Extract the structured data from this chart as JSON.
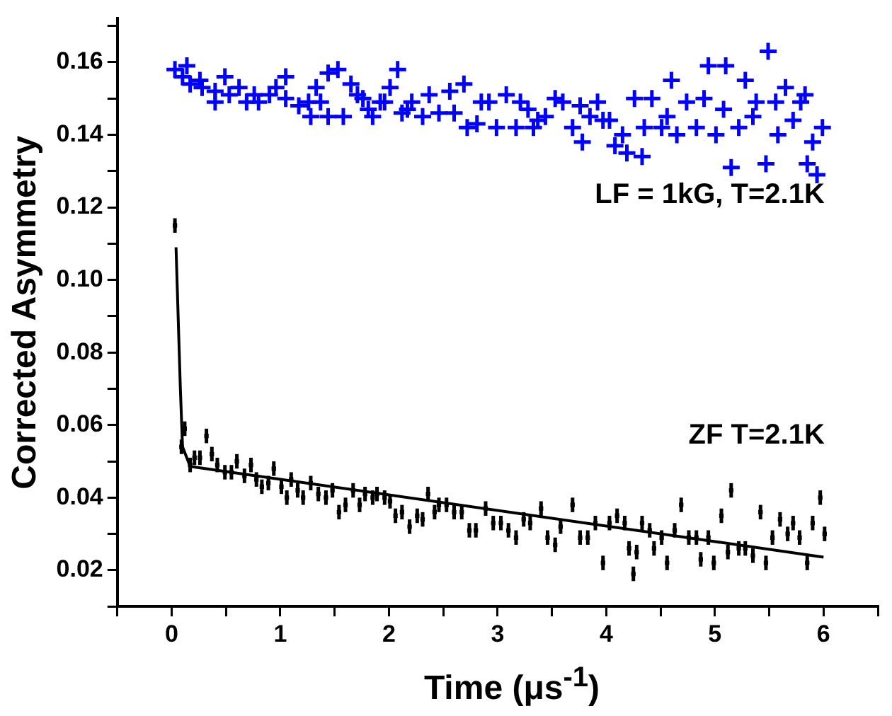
{
  "chart_data": {
    "type": "scatter",
    "xlabel": "Time (μs$^{-1}$)",
    "ylabel": "Corrected Asymmetry",
    "xlim": [
      -0.5,
      6.5
    ],
    "ylim": [
      0.01,
      0.172
    ],
    "xticks": [
      {
        "value": -0.5,
        "label": null
      },
      0,
      {
        "value": 0.5,
        "label": null
      },
      1,
      {
        "value": 1.5,
        "label": null
      },
      2,
      {
        "value": 2.5,
        "label": null
      },
      3,
      {
        "value": 3.5,
        "label": null
      },
      4,
      {
        "value": 4.5,
        "label": null
      },
      5,
      {
        "value": 5.5,
        "label": null
      },
      6,
      {
        "value": 6.5,
        "label": null
      }
    ],
    "yticks": [
      {
        "value": 0.01,
        "label": null
      },
      0.02,
      {
        "value": 0.03,
        "label": null
      },
      0.04,
      {
        "value": 0.05,
        "label": null
      },
      0.06,
      {
        "value": 0.07,
        "label": null
      },
      0.08,
      {
        "value": 0.09,
        "label": null
      },
      {
        "value": 0.1,
        "label": "0.10"
      },
      {
        "value": 0.11,
        "label": null
      },
      0.12,
      {
        "value": 0.13,
        "label": null
      },
      0.14,
      {
        "value": 0.15,
        "label": null
      },
      0.16,
      {
        "value": 0.17,
        "label": null
      }
    ],
    "grid": false,
    "legend": false,
    "annotations": [
      "LF = 1kG, T=2.1K",
      "ZF T=2.1K"
    ],
    "series": [
      {
        "color": "#0000ff",
        "marker": "cross",
        "x": [
          0.03,
          0.14,
          0.1,
          0.17,
          0.26,
          0.28,
          0.4,
          0.4,
          0.49,
          0.53,
          0.62,
          0.69,
          0.76,
          0.8,
          0.9,
          0.96,
          1.05,
          1.05,
          1.17,
          1.26,
          1.28,
          1.33,
          1.37,
          1.44,
          1.44,
          1.53,
          1.58,
          1.65,
          1.71,
          1.76,
          1.81,
          1.85,
          1.92,
          1.96,
          2.01,
          2.08,
          2.12,
          2.17,
          2.21,
          2.31,
          2.37,
          2.46,
          2.56,
          2.6,
          2.69,
          2.72,
          2.81,
          2.85,
          2.92,
          2.99,
          3.08,
          3.17,
          3.21,
          3.28,
          3.33,
          3.37,
          3.44,
          3.53,
          3.6,
          3.69,
          3.76,
          3.78,
          3.85,
          3.92,
          3.97,
          4.03,
          4.08,
          4.15,
          4.19,
          4.26,
          4.33,
          4.35,
          4.42,
          4.51,
          4.56,
          4.6,
          4.65,
          4.74,
          4.83,
          4.9,
          4.94,
          5.01,
          5.08,
          5.1,
          5.15,
          5.22,
          5.28,
          5.35,
          5.38,
          5.47,
          5.49,
          5.56,
          5.58,
          5.65,
          5.72,
          5.79,
          5.83,
          5.85,
          5.9,
          5.94,
          5.99
        ],
        "values": [
          0.158,
          0.159,
          0.156,
          0.154,
          0.155,
          0.153,
          0.152,
          0.149,
          0.156,
          0.151,
          0.153,
          0.149,
          0.151,
          0.149,
          0.151,
          0.153,
          0.156,
          0.15,
          0.148,
          0.149,
          0.145,
          0.153,
          0.149,
          0.157,
          0.145,
          0.158,
          0.145,
          0.154,
          0.151,
          0.15,
          0.147,
          0.145,
          0.149,
          0.149,
          0.153,
          0.158,
          0.146,
          0.147,
          0.149,
          0.145,
          0.151,
          0.146,
          0.152,
          0.146,
          0.154,
          0.142,
          0.143,
          0.149,
          0.149,
          0.142,
          0.151,
          0.142,
          0.149,
          0.147,
          0.142,
          0.144,
          0.145,
          0.15,
          0.149,
          0.142,
          0.148,
          0.138,
          0.145,
          0.149,
          0.144,
          0.144,
          0.137,
          0.14,
          0.135,
          0.15,
          0.134,
          0.142,
          0.15,
          0.142,
          0.145,
          0.155,
          0.14,
          0.149,
          0.142,
          0.15,
          0.159,
          0.14,
          0.147,
          0.159,
          0.131,
          0.142,
          0.155,
          0.145,
          0.149,
          0.132,
          0.163,
          0.149,
          0.14,
          0.153,
          0.144,
          0.149,
          0.151,
          0.132,
          0.138,
          0.129,
          0.142
        ]
      },
      {
        "color": "#000000",
        "marker": "square",
        "x": [
          0.03,
          0.09,
          0.12,
          0.17,
          0.21,
          0.26,
          0.32,
          0.37,
          0.42,
          0.49,
          0.55,
          0.6,
          0.67,
          0.73,
          0.78,
          0.83,
          0.89,
          0.94,
          1.01,
          1.06,
          1.1,
          1.16,
          1.21,
          1.28,
          1.35,
          1.42,
          1.48,
          1.54,
          1.6,
          1.67,
          1.73,
          1.78,
          1.85,
          1.89,
          1.96,
          2.01,
          2.06,
          2.12,
          2.19,
          2.26,
          2.31,
          2.36,
          2.42,
          2.46,
          2.53,
          2.6,
          2.67,
          2.74,
          2.8,
          2.89,
          2.96,
          3.03,
          3.1,
          3.17,
          3.24,
          3.3,
          3.4,
          3.46,
          3.53,
          3.58,
          3.69,
          3.76,
          3.83,
          3.9,
          3.97,
          4.03,
          4.1,
          4.17,
          4.21,
          4.25,
          4.28,
          4.33,
          4.4,
          4.44,
          4.51,
          4.56,
          4.63,
          4.69,
          4.76,
          4.83,
          4.87,
          4.94,
          4.99,
          5.06,
          5.12,
          5.15,
          5.22,
          5.28,
          5.35,
          5.42,
          5.47,
          5.53,
          5.6,
          5.67,
          5.72,
          5.78,
          5.85,
          5.9,
          5.97,
          6.01
        ],
        "values": [
          0.115,
          0.054,
          0.059,
          0.049,
          0.051,
          0.051,
          0.057,
          0.052,
          0.049,
          0.047,
          0.047,
          0.05,
          0.046,
          0.049,
          0.045,
          0.043,
          0.044,
          0.048,
          0.043,
          0.04,
          0.045,
          0.042,
          0.04,
          0.044,
          0.041,
          0.04,
          0.042,
          0.036,
          0.038,
          0.042,
          0.038,
          0.041,
          0.04,
          0.041,
          0.04,
          0.039,
          0.035,
          0.036,
          0.032,
          0.035,
          0.034,
          0.041,
          0.036,
          0.038,
          0.038,
          0.036,
          0.036,
          0.031,
          0.031,
          0.037,
          0.033,
          0.033,
          0.031,
          0.029,
          0.034,
          0.033,
          0.037,
          0.029,
          0.027,
          0.032,
          0.038,
          0.029,
          0.029,
          0.033,
          0.022,
          0.033,
          0.035,
          0.033,
          0.026,
          0.019,
          0.025,
          0.033,
          0.031,
          0.026,
          0.029,
          0.022,
          0.031,
          0.038,
          0.029,
          0.029,
          0.023,
          0.029,
          0.022,
          0.035,
          0.025,
          0.042,
          0.026,
          0.026,
          0.024,
          0.036,
          0.022,
          0.029,
          0.034,
          0.03,
          0.033,
          0.029,
          0.022,
          0.033,
          0.04,
          0.03
        ],
        "errors": [
          0.002,
          0.002,
          0.002,
          0.002,
          0.002,
          0.002,
          0.002,
          0.002,
          0.002,
          0.002,
          0.002,
          0.002,
          0.002,
          0.002,
          0.002,
          0.002,
          0.002,
          0.002,
          0.002,
          0.002,
          0.002,
          0.002,
          0.002,
          0.002,
          0.002,
          0.002,
          0.002,
          0.002,
          0.002,
          0.002,
          0.002,
          0.002,
          0.002,
          0.002,
          0.002,
          0.002,
          0.002,
          0.002,
          0.002,
          0.002,
          0.002,
          0.002,
          0.002,
          0.002,
          0.002,
          0.002,
          0.002,
          0.002,
          0.002,
          0.002,
          0.002,
          0.002,
          0.002,
          0.002,
          0.002,
          0.002,
          0.002,
          0.002,
          0.002,
          0.002,
          0.002,
          0.002,
          0.002,
          0.002,
          0.002,
          0.002,
          0.002,
          0.002,
          0.002,
          0.002,
          0.002,
          0.002,
          0.002,
          0.002,
          0.002,
          0.002,
          0.002,
          0.002,
          0.002,
          0.002,
          0.002,
          0.002,
          0.002,
          0.002,
          0.002,
          0.002,
          0.002,
          0.002,
          0.002,
          0.002,
          0.002,
          0.002,
          0.002,
          0.002,
          0.002,
          0.002,
          0.002,
          0.002,
          0.002,
          0.002
        ]
      },
      {
        "type": "line",
        "color": "#000000",
        "marker": "none",
        "line_style": "solid",
        "x": [
          0.04,
          0.08,
          0.1,
          0.17,
          6.0
        ],
        "values": [
          0.109,
          0.07,
          0.054,
          0.0486,
          0.0236
        ]
      }
    ]
  }
}
